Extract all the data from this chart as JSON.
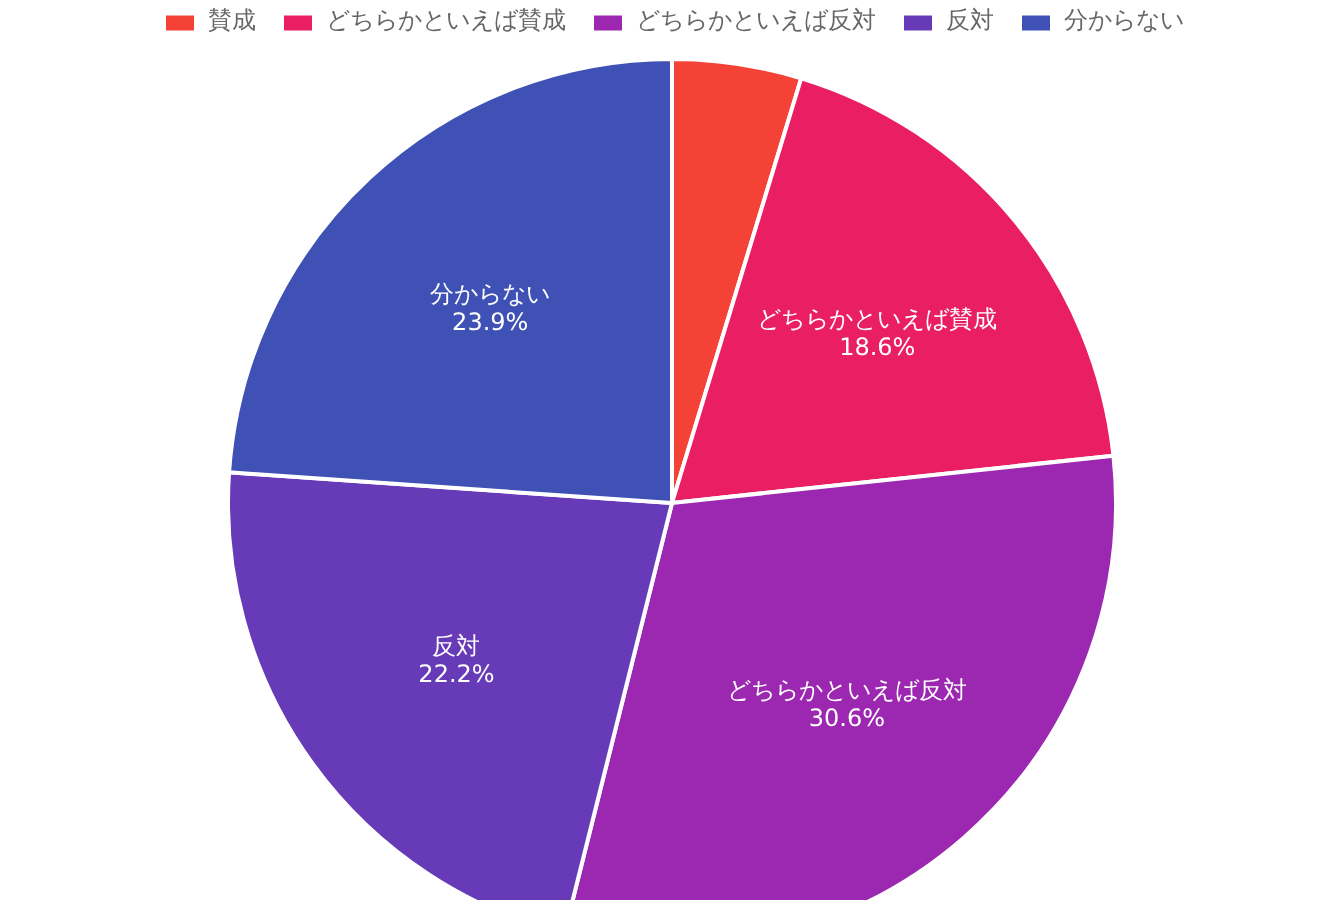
{
  "chart_data": {
    "type": "pie",
    "categories": [
      "賛成",
      "どちらかといえば賛成",
      "どちらかといえば反対",
      "反対",
      "分からない"
    ],
    "values": [
      4.7,
      18.6,
      30.6,
      22.2,
      23.9
    ],
    "colors": [
      "#f44336",
      "#e91e63",
      "#9c27b0",
      "#673ab7",
      "#3f51b5"
    ],
    "value_labels": [
      null,
      "18.6%",
      "30.6%",
      "22.2%",
      "23.9%"
    ],
    "legend": "top"
  }
}
